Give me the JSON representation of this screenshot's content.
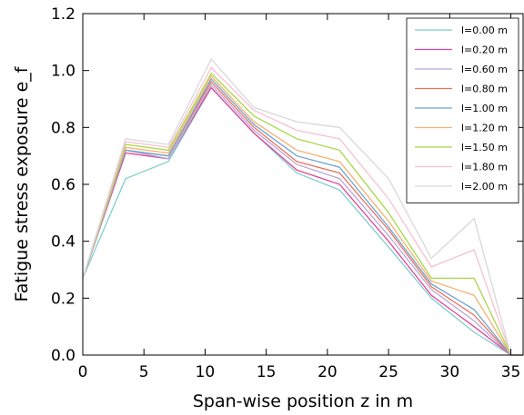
{
  "chart_data": {
    "type": "line",
    "xlabel": "Span-wise position z in m",
    "ylabel": "Fatigue stress exposure e_f",
    "xlim": [
      0,
      36
    ],
    "ylim": [
      0.0,
      1.2
    ],
    "x_ticks": [
      "0",
      "5",
      "10",
      "15",
      "20",
      "25",
      "30",
      "35"
    ],
    "y_ticks": [
      "0.0",
      "0.2",
      "0.4",
      "0.6",
      "0.8",
      "1.0",
      "1.2"
    ],
    "grid": false,
    "legend_position": "top-right",
    "x": [
      0,
      3.5,
      7,
      10.5,
      14,
      17.5,
      21,
      25,
      28.5,
      32,
      35,
      36
    ],
    "series": [
      {
        "name": "l=0.00 m",
        "color": "#7ecfcf",
        "values": [
          0.27,
          0.62,
          0.68,
          0.94,
          0.78,
          0.64,
          0.58,
          0.38,
          0.2,
          0.08,
          0.0,
          0.0
        ]
      },
      {
        "name": "l=0.20 m",
        "color": "#e0449a",
        "values": [
          0.27,
          0.71,
          0.69,
          0.94,
          0.78,
          0.65,
          0.6,
          0.4,
          0.21,
          0.1,
          0.0,
          0.0
        ]
      },
      {
        "name": "l=0.60 m",
        "color": "#b8a8d8",
        "values": [
          0.27,
          0.72,
          0.69,
          0.95,
          0.79,
          0.67,
          0.62,
          0.42,
          0.23,
          0.12,
          0.0,
          0.0
        ]
      },
      {
        "name": "l=0.80 m",
        "color": "#ee7060",
        "values": [
          0.27,
          0.72,
          0.7,
          0.96,
          0.8,
          0.68,
          0.64,
          0.44,
          0.24,
          0.14,
          0.0,
          0.0
        ]
      },
      {
        "name": "l=1.00 m",
        "color": "#6aa6d0",
        "values": [
          0.27,
          0.72,
          0.7,
          0.97,
          0.81,
          0.7,
          0.66,
          0.45,
          0.25,
          0.16,
          0.0,
          0.0
        ]
      },
      {
        "name": "l=1.20 m",
        "color": "#f8b070",
        "values": [
          0.27,
          0.73,
          0.71,
          0.98,
          0.82,
          0.72,
          0.68,
          0.47,
          0.26,
          0.21,
          0.0,
          0.0
        ]
      },
      {
        "name": "l=1.50 m",
        "color": "#a8d848",
        "values": [
          0.27,
          0.74,
          0.72,
          0.99,
          0.84,
          0.76,
          0.72,
          0.5,
          0.27,
          0.27,
          0.0,
          0.0
        ]
      },
      {
        "name": "l=1.80 m",
        "color": "#f8c0d4",
        "values": [
          0.27,
          0.75,
          0.73,
          1.01,
          0.86,
          0.79,
          0.76,
          0.55,
          0.31,
          0.37,
          0.0,
          0.0
        ]
      },
      {
        "name": "l=2.00 m",
        "color": "#d8d8d8",
        "values": [
          0.27,
          0.76,
          0.74,
          1.04,
          0.87,
          0.82,
          0.8,
          0.62,
          0.34,
          0.48,
          0.0,
          0.0
        ]
      }
    ]
  }
}
